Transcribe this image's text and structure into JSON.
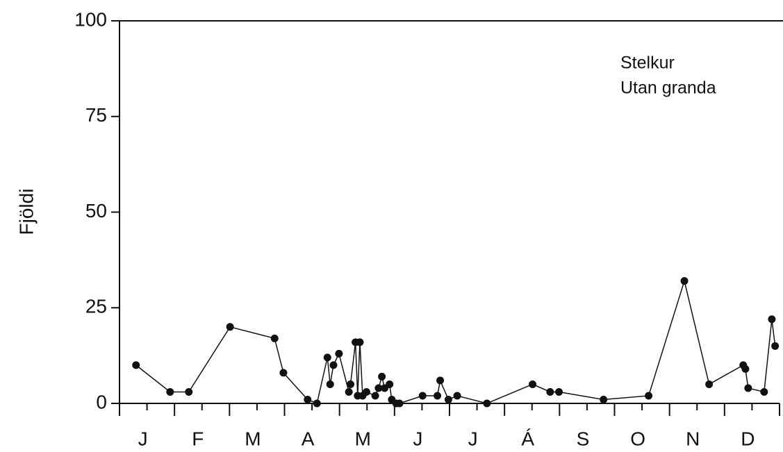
{
  "chart_data": {
    "type": "line",
    "y_label": "Fjöldi",
    "annotations": [
      "Stelkur",
      "Utan granda"
    ],
    "categories": [
      "J",
      "F",
      "M",
      "A",
      "M",
      "J",
      "J",
      "Á",
      "S",
      "O",
      "N",
      "D"
    ],
    "xlim": [
      0,
      12
    ],
    "x": [
      0.3,
      0.92,
      1.26,
      2.01,
      2.82,
      2.98,
      3.42,
      3.59,
      3.78,
      3.83,
      3.89,
      3.99,
      4.17,
      4.2,
      4.29,
      4.33,
      4.37,
      4.42,
      4.49,
      4.65,
      4.71,
      4.77,
      4.82,
      4.91,
      4.95,
      5.03,
      5.09,
      5.51,
      5.78,
      5.83,
      5.98,
      6.14,
      6.68,
      7.51,
      7.83,
      7.99,
      8.8,
      9.62,
      10.27,
      10.72,
      11.34,
      11.38,
      11.43,
      11.72,
      11.86,
      11.92
    ],
    "values": [
      10,
      3,
      3,
      20,
      17,
      8,
      1,
      0,
      12,
      5,
      10,
      13,
      3,
      5,
      16,
      2,
      16,
      2,
      3,
      2,
      4,
      7,
      4,
      5,
      1,
      0,
      0,
      2,
      2,
      6,
      1,
      2,
      0,
      5,
      3,
      3,
      1,
      2,
      32,
      5,
      10,
      9,
      4,
      3,
      22,
      15
    ],
    "color": "#111111",
    "ylim": [
      0,
      100
    ],
    "yticks": [
      0,
      25,
      50,
      75,
      100
    ]
  }
}
